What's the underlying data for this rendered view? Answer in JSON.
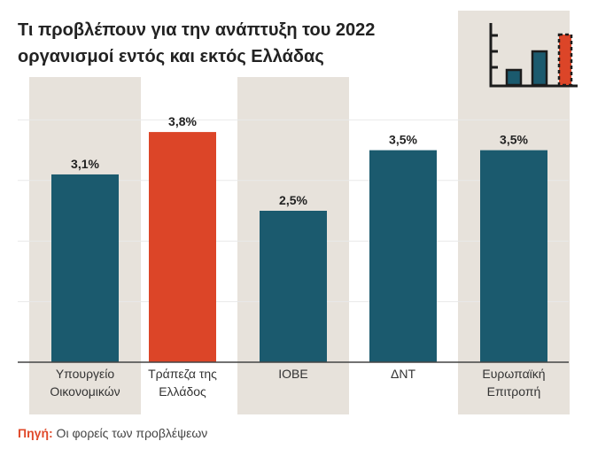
{
  "title": [
    "Τι προβλέπουν για την ανάπτυξη του 2022",
    "οργανισμοί εντός και εκτός Ελλάδας"
  ],
  "source": {
    "label": "Πηγή:",
    "text": " Οι φορείς των προβλέψεων"
  },
  "colors": {
    "bar_default": "#1b5a6e",
    "bar_highlight": "#dc4528",
    "band": "#e7e2db",
    "grid": "#e9e9e9",
    "axis": "#444444",
    "icon_dark": "#1c1c1c"
  },
  "icon": "bar-chart-icon",
  "chart_data": {
    "type": "bar",
    "categories": [
      [
        "Υπουργείο",
        "Οικονομικών"
      ],
      [
        "Τράπεζα της",
        "Ελλάδος"
      ],
      [
        "ΙΟΒΕ"
      ],
      [
        "ΔΝΤ"
      ],
      [
        "Ευρωπαϊκή",
        "Επιτροπή"
      ]
    ],
    "values": [
      3.1,
      3.8,
      2.5,
      3.5,
      3.5
    ],
    "value_labels": [
      "3,1%",
      "3,8%",
      "2,5%",
      "3,5%",
      "3,5%"
    ],
    "highlight_index": 1,
    "shaded_bands": [
      0,
      2,
      4
    ],
    "ylim": [
      0,
      5
    ],
    "grid": true,
    "title": "Τι προβλέπουν για την ανάπτυξη του 2022 οργανισμοί εντός και εκτός Ελλάδας"
  }
}
